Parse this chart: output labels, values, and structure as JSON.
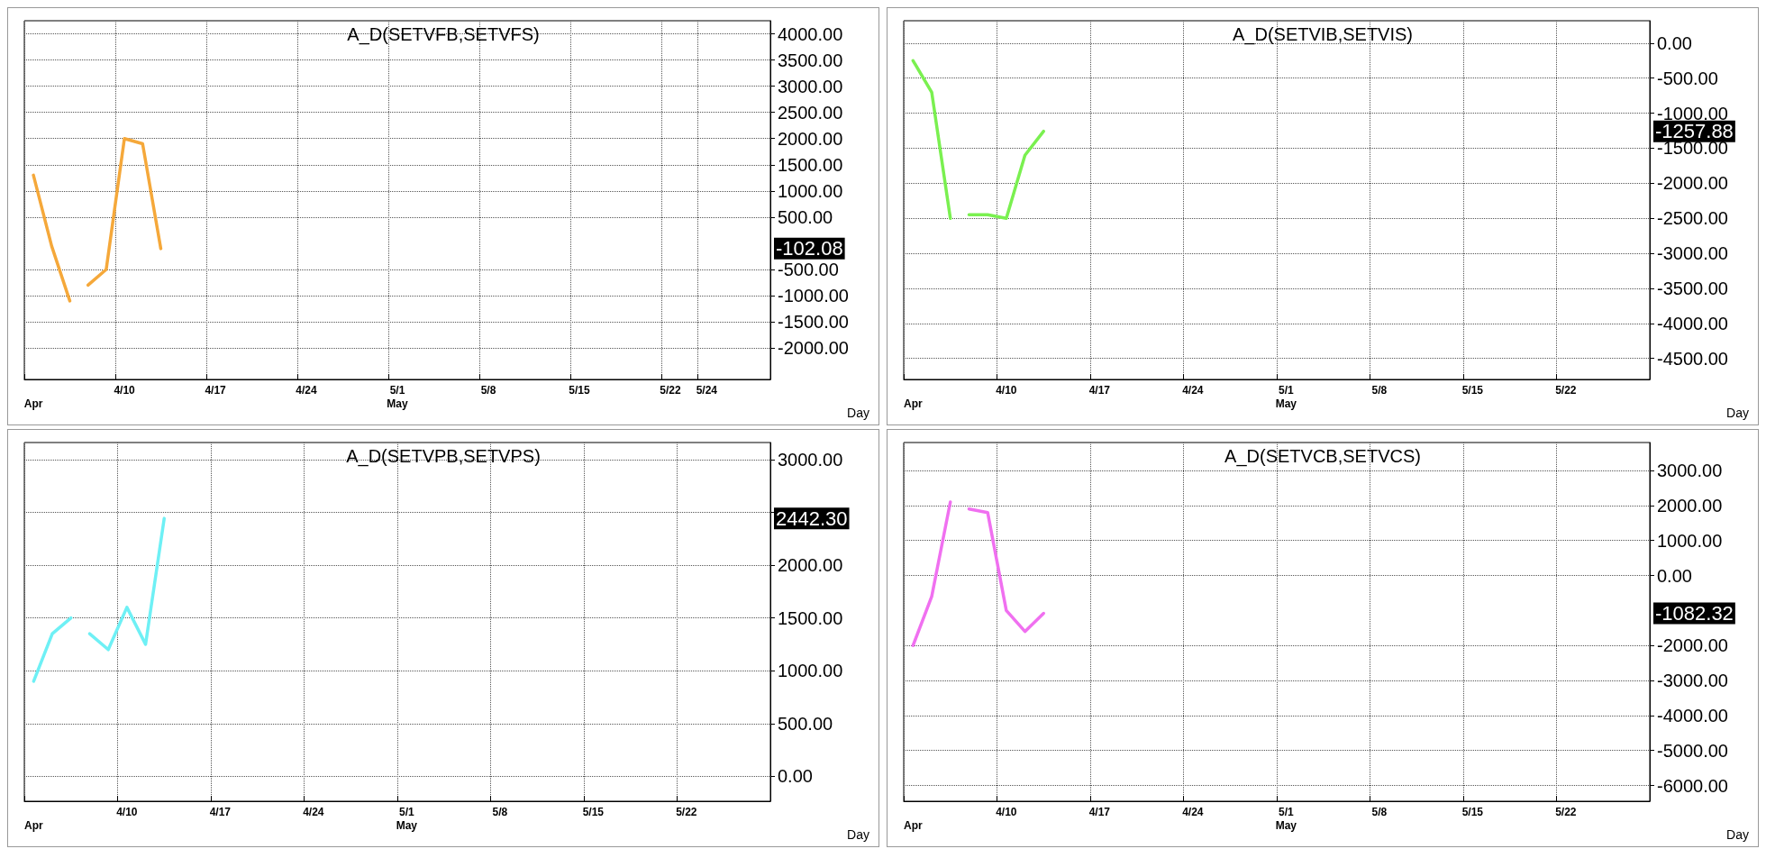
{
  "chart_data": [
    {
      "type": "line",
      "title": "A_D(SETVFB,SETVFS)",
      "categories": [
        "\nApr",
        null,
        null,
        null,
        null,
        "4/10",
        null,
        null,
        null,
        null,
        "4/17",
        null,
        null,
        null,
        null,
        "4/24",
        null,
        null,
        null,
        null,
        "5/1\nMay",
        null,
        null,
        null,
        null,
        "5/8",
        null,
        null,
        null,
        null,
        "5/15",
        null,
        null,
        null,
        null,
        "5/22",
        null,
        "5/24",
        null,
        null,
        null
      ],
      "series": [
        {
          "color": "#f5a83a",
          "values": [
            1300,
            -50,
            -1100,
            null,
            null,
            null,
            null,
            null,
            null,
            null,
            null,
            null,
            null,
            null,
            null,
            null,
            null,
            null,
            null,
            null,
            null,
            null,
            null,
            null,
            null,
            null,
            null,
            null,
            null,
            null,
            null,
            null,
            null,
            null,
            null,
            null,
            null,
            null,
            null,
            null,
            null
          ]
        },
        {
          "color": "#f5a83a",
          "values": [
            null,
            null,
            null,
            -800,
            -500,
            2000,
            1900,
            -102.08,
            null,
            null,
            null,
            null,
            null,
            null,
            null,
            null,
            null,
            null,
            null,
            null,
            null,
            null,
            null,
            null,
            null,
            null,
            null,
            null,
            null,
            null,
            null,
            null,
            null,
            null,
            null,
            null,
            null,
            null,
            null,
            null,
            null
          ]
        }
      ],
      "ylim": [
        -2600,
        4250
      ],
      "yticks": [
        {
          "value": -2000,
          "label": "-2000.00"
        },
        {
          "value": -1500,
          "label": "-1500.00"
        },
        {
          "value": -1000,
          "label": "-1000.00"
        },
        {
          "value": -500,
          "label": "-500.00"
        },
        {
          "value": 500,
          "label": "500.00"
        },
        {
          "value": 1000,
          "label": "1000.00"
        },
        {
          "value": 1500,
          "label": "1500.00"
        },
        {
          "value": 2000,
          "label": "2000.00"
        },
        {
          "value": 2500,
          "label": "2500.00"
        },
        {
          "value": 3000,
          "label": "3000.00"
        },
        {
          "value": 3500,
          "label": "3500.00"
        },
        {
          "value": 4000,
          "label": "4000.00"
        }
      ],
      "grid": true,
      "marker": "none",
      "line_style": "solid",
      "annotations": [
        "Day",
        "-102.08"
      ]
    },
    {
      "type": "line",
      "title": "A_D(SETVIB,SETVIS)",
      "categories": [
        "\nApr",
        null,
        null,
        null,
        null,
        "4/10",
        null,
        null,
        null,
        null,
        "4/17",
        null,
        null,
        null,
        null,
        "4/24",
        null,
        null,
        null,
        null,
        "5/1\nMay",
        null,
        null,
        null,
        null,
        "5/8",
        null,
        null,
        null,
        null,
        "5/15",
        null,
        null,
        null,
        null,
        "5/22",
        null,
        null,
        null,
        null
      ],
      "series": [
        {
          "color": "#7af050",
          "values": [
            -250,
            -700,
            -2500,
            null,
            null,
            null,
            null,
            null,
            null,
            null,
            null,
            null,
            null,
            null,
            null,
            null,
            null,
            null,
            null,
            null,
            null,
            null,
            null,
            null,
            null,
            null,
            null,
            null,
            null,
            null,
            null,
            null,
            null,
            null,
            null,
            null,
            null,
            null,
            null,
            null
          ]
        },
        {
          "color": "#7af050",
          "values": [
            null,
            null,
            null,
            -2450,
            -2450,
            -2500,
            -1600,
            -1257.88,
            null,
            null,
            null,
            null,
            null,
            null,
            null,
            null,
            null,
            null,
            null,
            null,
            null,
            null,
            null,
            null,
            null,
            null,
            null,
            null,
            null,
            null,
            null,
            null,
            null,
            null,
            null,
            null,
            null,
            null,
            null,
            null
          ]
        }
      ],
      "ylim": [
        -4800,
        320
      ],
      "yticks": [
        {
          "value": -4500,
          "label": "-4500.00"
        },
        {
          "value": -4000,
          "label": "-4000.00"
        },
        {
          "value": -3500,
          "label": "-3500.00"
        },
        {
          "value": -3000,
          "label": "-3000.00"
        },
        {
          "value": -2500,
          "label": "-2500.00"
        },
        {
          "value": -2000,
          "label": "-2000.00"
        },
        {
          "value": -1500,
          "label": "-1500.00"
        },
        {
          "value": -1000,
          "label": "-1000.00"
        },
        {
          "value": -500,
          "label": "-500.00"
        },
        {
          "value": 0,
          "label": "0.00"
        }
      ],
      "grid": true,
      "marker": "none",
      "line_style": "solid",
      "annotations": [
        "Day",
        "-1257.88"
      ]
    },
    {
      "type": "line",
      "title": "A_D(SETVPB,SETVPS)",
      "categories": [
        "\nApr",
        null,
        null,
        null,
        null,
        "4/10",
        null,
        null,
        null,
        null,
        "4/17",
        null,
        null,
        null,
        null,
        "4/24",
        null,
        null,
        null,
        null,
        "5/1\nMay",
        null,
        null,
        null,
        null,
        "5/8",
        null,
        null,
        null,
        null,
        "5/15",
        null,
        null,
        null,
        null,
        "5/22",
        null,
        null,
        null,
        null
      ],
      "series": [
        {
          "color": "#6ef0f5",
          "values": [
            900,
            1350,
            1500,
            null,
            null,
            null,
            null,
            null,
            null,
            null,
            null,
            null,
            null,
            null,
            null,
            null,
            null,
            null,
            null,
            null,
            null,
            null,
            null,
            null,
            null,
            null,
            null,
            null,
            null,
            null,
            null,
            null,
            null,
            null,
            null,
            null,
            null,
            null,
            null,
            null
          ]
        },
        {
          "color": "#6ef0f5",
          "values": [
            null,
            null,
            null,
            1350,
            1200,
            1600,
            1250,
            2442.3,
            null,
            null,
            null,
            null,
            null,
            null,
            null,
            null,
            null,
            null,
            null,
            null,
            null,
            null,
            null,
            null,
            null,
            null,
            null,
            null,
            null,
            null,
            null,
            null,
            null,
            null,
            null,
            null,
            null,
            null,
            null,
            null
          ]
        }
      ],
      "ylim": [
        -235,
        3160
      ],
      "yticks": [
        {
          "value": 0,
          "label": "0.00"
        },
        {
          "value": 500,
          "label": "500.00"
        },
        {
          "value": 1000,
          "label": "1000.00"
        },
        {
          "value": 1500,
          "label": "1500.00"
        },
        {
          "value": 2000,
          "label": "2000.00"
        },
        {
          "value": 2500,
          "label": null
        },
        {
          "value": 3000,
          "label": "3000.00"
        }
      ],
      "grid": true,
      "marker": "none",
      "line_style": "solid",
      "annotations": [
        "Day",
        "2442.30"
      ]
    },
    {
      "type": "line",
      "title": "A_D(SETVCB,SETVCS)",
      "categories": [
        "\nApr",
        null,
        null,
        null,
        null,
        "4/10",
        null,
        null,
        null,
        null,
        "4/17",
        null,
        null,
        null,
        null,
        "4/24",
        null,
        null,
        null,
        null,
        "5/1\nMay",
        null,
        null,
        null,
        null,
        "5/8",
        null,
        null,
        null,
        null,
        "5/15",
        null,
        null,
        null,
        null,
        "5/22",
        null,
        null,
        null,
        null
      ],
      "series": [
        {
          "color": "#f070f0",
          "values": [
            -2000,
            -600,
            2100,
            null,
            null,
            null,
            null,
            null,
            null,
            null,
            null,
            null,
            null,
            null,
            null,
            null,
            null,
            null,
            null,
            null,
            null,
            null,
            null,
            null,
            null,
            null,
            null,
            null,
            null,
            null,
            null,
            null,
            null,
            null,
            null,
            null,
            null,
            null,
            null,
            null
          ]
        },
        {
          "color": "#f070f0",
          "values": [
            null,
            null,
            null,
            1900,
            1800,
            -1000,
            -1600,
            -1082.32,
            null,
            null,
            null,
            null,
            null,
            null,
            null,
            null,
            null,
            null,
            null,
            null,
            null,
            null,
            null,
            null,
            null,
            null,
            null,
            null,
            null,
            null,
            null,
            null,
            null,
            null,
            null,
            null,
            null,
            null,
            null,
            null
          ]
        }
      ],
      "ylim": [
        -6450,
        3800
      ],
      "yticks": [
        {
          "value": -6000,
          "label": "-6000.00"
        },
        {
          "value": -5000,
          "label": "-5000.00"
        },
        {
          "value": -4000,
          "label": "-4000.00"
        },
        {
          "value": -3000,
          "label": "-3000.00"
        },
        {
          "value": -2000,
          "label": "-2000.00"
        },
        {
          "value": 1000,
          "label": "1000.00"
        },
        {
          "value": 0,
          "label": "0.00"
        },
        {
          "value": 2000,
          "label": "2000.00"
        },
        {
          "value": 3000,
          "label": "3000.00"
        }
      ],
      "grid": true,
      "marker": "none",
      "line_style": "solid",
      "annotations": [
        "Day",
        "-1082.32"
      ]
    }
  ]
}
